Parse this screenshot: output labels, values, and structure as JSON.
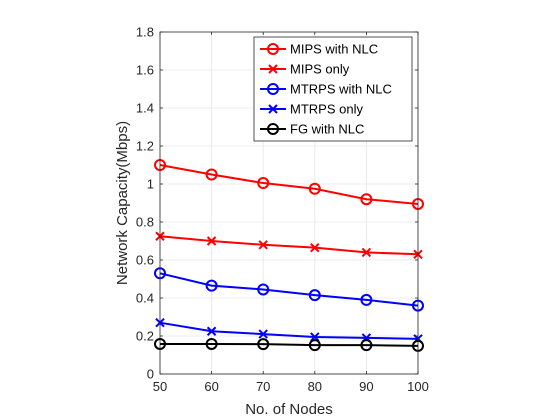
{
  "chart_data": {
    "type": "line",
    "title": "",
    "xlabel": "No. of Nodes",
    "ylabel": "Network Capacity(Mbps)",
    "x": [
      50,
      60,
      70,
      80,
      90,
      100
    ],
    "xlim": [
      50,
      100
    ],
    "ylim": [
      0,
      1.8
    ],
    "xticks": [
      "50",
      "60",
      "70",
      "80",
      "90",
      "100"
    ],
    "yticks": [
      "0",
      "0.2",
      "0.4",
      "0.6",
      "0.8",
      "1",
      "1.2",
      "1.4",
      "1.6",
      "1.8"
    ],
    "grid": true,
    "legend_position": "top-right",
    "series": [
      {
        "name": "MIPS with NLC",
        "color": "#ff0000",
        "marker": "circle",
        "values": [
          1.1,
          1.05,
          1.005,
          0.975,
          0.92,
          0.895
        ]
      },
      {
        "name": "MIPS only",
        "color": "#ff0000",
        "marker": "x",
        "values": [
          0.725,
          0.7,
          0.68,
          0.665,
          0.64,
          0.63
        ]
      },
      {
        "name": "MTRPS with NLC",
        "color": "#0000ff",
        "marker": "circle",
        "values": [
          0.53,
          0.465,
          0.445,
          0.415,
          0.39,
          0.36
        ]
      },
      {
        "name": "MTRPS only",
        "color": "#0000ff",
        "marker": "x",
        "values": [
          0.27,
          0.225,
          0.21,
          0.195,
          0.19,
          0.185
        ]
      },
      {
        "name": "FG with NLC",
        "color": "#000000",
        "marker": "circle",
        "values": [
          0.158,
          0.158,
          0.157,
          0.152,
          0.152,
          0.148
        ]
      }
    ]
  }
}
